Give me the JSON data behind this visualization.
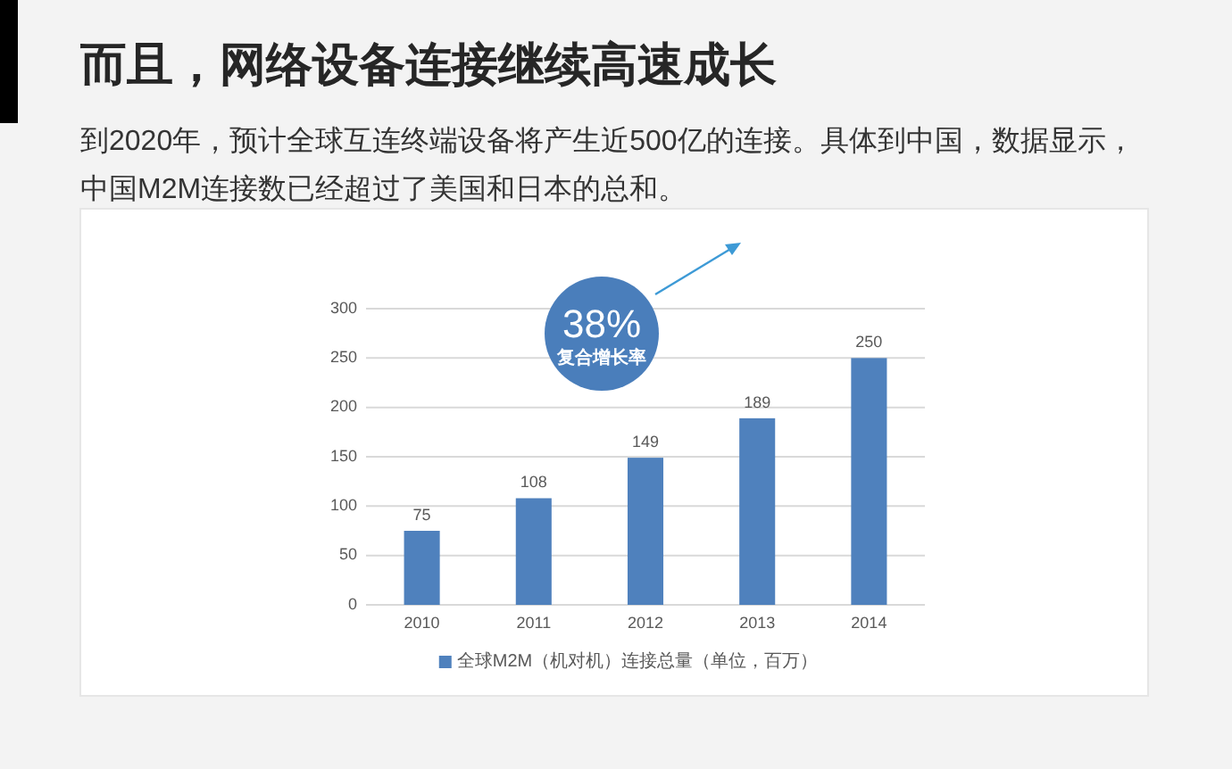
{
  "chart_data": {
    "type": "bar",
    "title": "而且，网络设备连接继续高速成长",
    "subtitle": "到2020年，预计全球互连终端设备将产生近500亿的连接。具体到中国，数据显示，中国M2M连接数已经超过了美国和日本的总和。",
    "categories": [
      "2010",
      "2011",
      "2012",
      "2013",
      "2014"
    ],
    "series": [
      {
        "name": "全球M2M（机对机）连接总量（单位，百万）",
        "color": "#4f81bd",
        "values": [
          75,
          108,
          149,
          189,
          250
        ]
      }
    ],
    "ylim": [
      0,
      300
    ],
    "yticks": [
      0,
      50,
      100,
      150,
      200,
      250,
      300
    ],
    "grid": "y",
    "legend": "bottom",
    "data_labels": true,
    "annotations": [
      "38%",
      "复合增长率"
    ]
  }
}
